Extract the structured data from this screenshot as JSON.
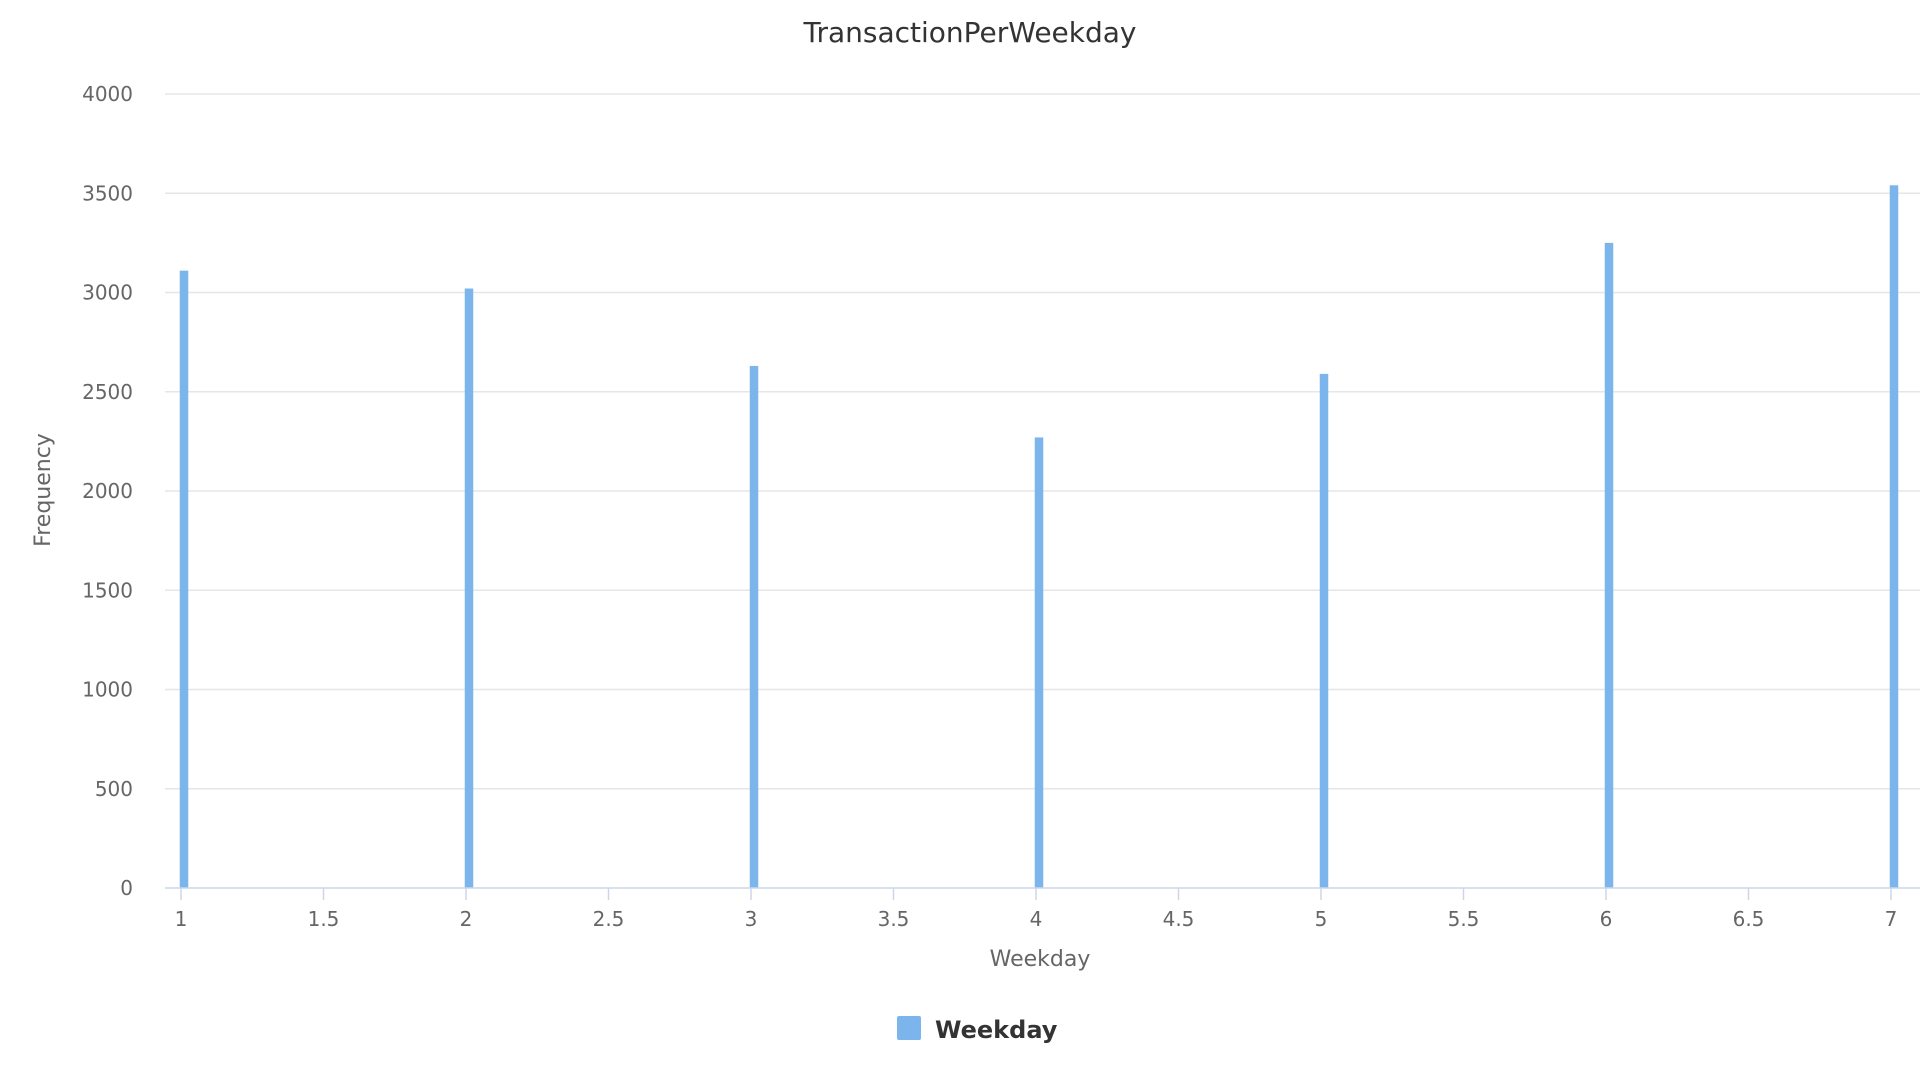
{
  "chart_data": {
    "type": "bar",
    "title": "TransactionPerWeekday",
    "xlabel": "Weekday",
    "ylabel": "Frequency",
    "xlim": [
      1,
      7
    ],
    "ylim": [
      0,
      4000
    ],
    "x_ticks": [
      "1",
      "1.5",
      "2",
      "2.5",
      "3",
      "3.5",
      "4",
      "4.5",
      "5",
      "5.5",
      "6",
      "6.5",
      "7"
    ],
    "y_ticks": [
      "0",
      "500",
      "1000",
      "1500",
      "2000",
      "2500",
      "3000",
      "3500",
      "4000"
    ],
    "grid": true,
    "legend_position": "bottom-center",
    "series": [
      {
        "name": "Weekday",
        "color": "#7cb5ec",
        "x": [
          1,
          2,
          3,
          4,
          5,
          6,
          7
        ],
        "values": [
          3110,
          3020,
          2630,
          2270,
          2590,
          3250,
          3540
        ]
      }
    ]
  }
}
